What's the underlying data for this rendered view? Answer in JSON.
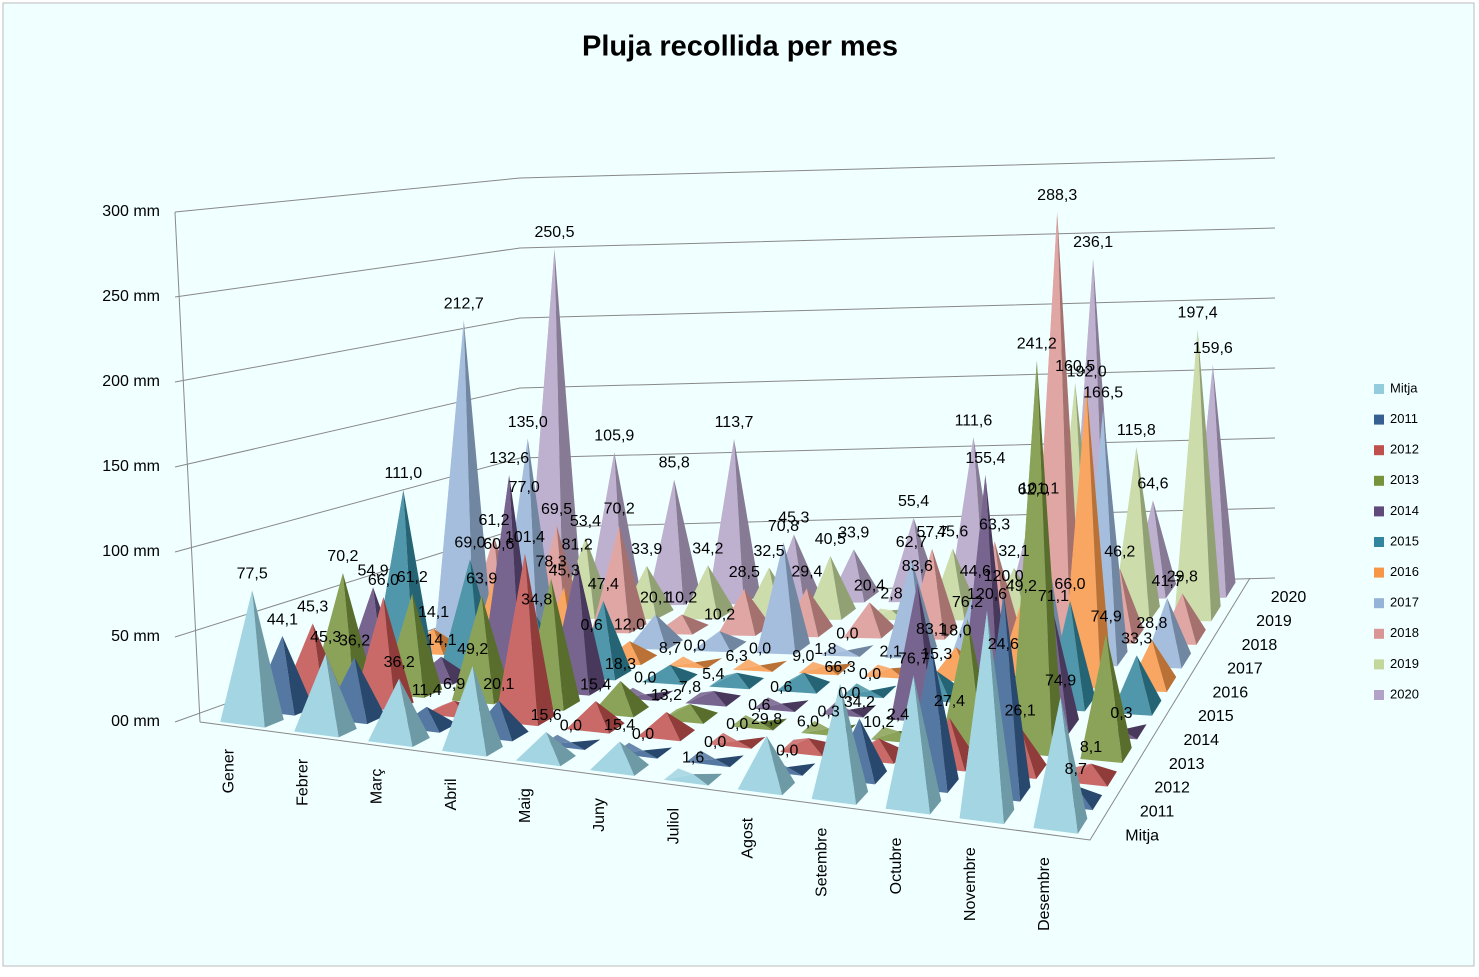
{
  "chart_data": {
    "type": "pyramid3d",
    "title": "Pluja recollida  per mes",
    "categories": [
      "Gener",
      "Febrer",
      "Març",
      "Abril",
      "Maig",
      "Juny",
      "Juliol",
      "Agost",
      "Setembre",
      "Octubre",
      "Novembre",
      "Desembre"
    ],
    "ylim": [
      0,
      300
    ],
    "yticks": [
      {
        "value": 0,
        "label": "00 mm"
      },
      {
        "value": 50,
        "label": "50 mm"
      },
      {
        "value": 100,
        "label": "100 mm"
      },
      {
        "value": 150,
        "label": "150 mm"
      },
      {
        "value": 200,
        "label": "200 mm"
      },
      {
        "value": 250,
        "label": "250 mm"
      },
      {
        "value": 300,
        "label": "300 mm"
      }
    ],
    "grid": true,
    "legend": "right",
    "series": [
      {
        "name": "Mitja",
        "color": "#93cddd",
        "values": [
          77.5,
          45.3,
          36.2,
          49.2,
          15.6,
          15.4,
          1.6,
          29.8,
          66.3,
          76.7,
          120.6,
          74.9
        ],
        "value_labels": [
          "77,5",
          "45,3",
          "36,2",
          "49,2",
          "15,6",
          "15,4",
          "1,6",
          "29,8",
          "66,3",
          "76,7",
          "120,6",
          "74,9"
        ]
      },
      {
        "name": "2011",
        "color": "#376092",
        "values": [
          44.1,
          36.2,
          11.4,
          20.1,
          0.0,
          0.0,
          0.0,
          0.0,
          34.2,
          83.1,
          120.0,
          8.7
        ],
        "value_labels": [
          "44,1",
          "36,2",
          "11,4",
          "20,1",
          "0,0",
          "0,0",
          "0,0",
          "0,0",
          "34,2",
          "83,1",
          "120,0",
          "8,7"
        ]
      },
      {
        "name": "2012",
        "color": "#c0504d",
        "values": [
          45.3,
          66.0,
          6.9,
          101.4,
          15.4,
          13.2,
          0.0,
          6.0,
          10.2,
          27.4,
          26.1,
          8.1
        ],
        "value_labels": [
          "45,3",
          "66,0",
          "6,9",
          "101,4",
          "15,4",
          "13,2",
          "0,0",
          "6,0",
          "10,2",
          "27,4",
          "26,1",
          "8,1"
        ]
      },
      {
        "name": "2013",
        "color": "#77933c",
        "values": [
          70.2,
          61.2,
          63.9,
          78.3,
          18.3,
          7.8,
          0.6,
          0.3,
          2.4,
          76.2,
          241.2,
          74.9
        ],
        "value_labels": [
          "70,2",
          "61,2",
          "63,9",
          "78,3",
          "18,3",
          "7,8",
          "0,6",
          "0,3",
          "2,4",
          "76,2",
          "241,2",
          "74,9"
        ]
      },
      {
        "name": "2014",
        "color": "#604a7b",
        "values": [
          54.9,
          14.1,
          132.6,
          81.2,
          0.0,
          5.4,
          0.6,
          0.0,
          83.6,
          155.4,
          71.1,
          0.3
        ],
        "value_labels": [
          "54,9",
          "14,1",
          "132,6",
          "81,2",
          "0,0",
          "5,4",
          "0,6",
          "0,0",
          "83,6",
          "155,4",
          "71,1",
          "0,3"
        ]
      },
      {
        "name": "2015",
        "color": "#31859c",
        "values": [
          111.0,
          69.0,
          34.8,
          47.4,
          8.7,
          6.3,
          9.0,
          0.0,
          15.3,
          24.6,
          66.0,
          33.3
        ],
        "value_labels": [
          "111,0",
          "69,0",
          "34,8",
          "47,4",
          "8,7",
          "6,3",
          "9,0",
          "0,0",
          "15,3",
          "24,6",
          "66,0",
          "33,3"
        ]
      },
      {
        "name": "2016",
        "color": "#f79646",
        "values": [
          14.1,
          60.6,
          45.3,
          12.0,
          0.0,
          0.0,
          1.8,
          2.1,
          18.0,
          49.2,
          192.0,
          28.8
        ],
        "value_labels": [
          "14,1",
          "60,6",
          "45,3",
          "12,0",
          "0,0",
          "0,0",
          "1,8",
          "2,1",
          "18,0",
          "49,2",
          "192,0",
          "28,8"
        ]
      },
      {
        "name": "2017",
        "color": "#95b3d7",
        "values": [
          212.7,
          135.0,
          0.6,
          20.1,
          10.2,
          70.8,
          0.0,
          62.7,
          44.6,
          101.1,
          166.5,
          41.7
        ],
        "value_labels": [
          "212,7",
          "135,0",
          "0,6",
          "20,1",
          "10,2",
          "70,8",
          "0,0",
          "62,7",
          "44,6",
          "101,1",
          "166,5",
          "41,7"
        ]
      },
      {
        "name": "2018",
        "color": "#da9694",
        "values": [
          61.2,
          69.5,
          70.2,
          10.2,
          28.5,
          29.4,
          20.4,
          57.7,
          63.3,
          288.3,
          46.2,
          29.8
        ],
        "value_labels": [
          "61,2",
          "69,5",
          "70,2",
          "10,2",
          "28,5",
          "29,4",
          "20,4",
          "57,7",
          "63,3",
          "288,3",
          "46,2",
          "29,8"
        ]
      },
      {
        "name": "2019",
        "color": "#c3d69b",
        "values": [
          77.0,
          53.4,
          33.9,
          34.2,
          32.5,
          40.5,
          2.8,
          45.6,
          32.1,
          160.5,
          115.8,
          197.4
        ],
        "value_labels": [
          "77,0",
          "53,4",
          "33,9",
          "34,2",
          "32,5",
          "40,5",
          "2,8",
          "45,6",
          "32,1",
          "160,5",
          "115,8",
          "197,4"
        ]
      },
      {
        "name": "2020",
        "color": "#b3a2c7",
        "values": [
          250.5,
          105.9,
          85.8,
          113.7,
          45.3,
          33.9,
          55.4,
          111.6,
          62.0,
          236.1,
          64.6,
          159.6
        ],
        "value_labels": [
          "250,5",
          "105,9",
          "85,8",
          "113,7",
          "45,3",
          "33,9",
          "55,4",
          "111,6",
          "62,0",
          "236,1",
          "64,6",
          "159,6"
        ]
      }
    ]
  }
}
